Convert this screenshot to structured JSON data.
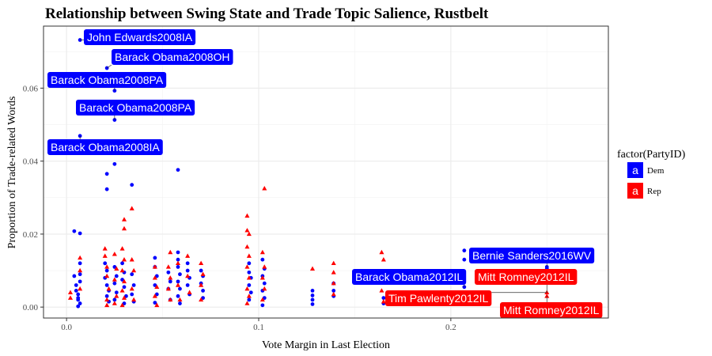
{
  "chart_data": {
    "type": "scatter",
    "title": "Relationship between Swing State and Trade Topic Salience, Rustbelt",
    "xlabel": "Vote Margin in Last Election",
    "ylabel": "Proportion of Trade-related Words",
    "xlim": [
      -0.012,
      0.282
    ],
    "ylim": [
      -0.003,
      0.077
    ],
    "xticks": [
      0.0,
      0.1,
      0.2
    ],
    "xtick_labels": [
      "0.0",
      "0.1",
      "0.2"
    ],
    "yticks": [
      0.0,
      0.02,
      0.04,
      0.06
    ],
    "ytick_labels": [
      "0.00",
      "0.02",
      "0.04",
      "0.06"
    ],
    "grid": true,
    "legend": {
      "title": "factor(PartyID)",
      "position": "right",
      "key_letter": "a",
      "entries": [
        {
          "label": "Dem",
          "color": "#0000ff",
          "shape": "circle"
        },
        {
          "label": "Rep",
          "color": "#ff0000",
          "shape": "triangle"
        }
      ]
    },
    "series": [
      {
        "name": "Dem",
        "color": "#0000ff",
        "shape": "circle",
        "points": [
          [
            0.007,
            0.0732
          ],
          [
            0.021,
            0.0655
          ],
          [
            0.025,
            0.0593
          ],
          [
            0.025,
            0.0513
          ],
          [
            0.007,
            0.0469
          ],
          [
            0.025,
            0.0392
          ],
          [
            0.058,
            0.0376
          ],
          [
            0.021,
            0.0365
          ],
          [
            0.034,
            0.0335
          ],
          [
            0.021,
            0.0323
          ],
          [
            0.004,
            0.0208
          ],
          [
            0.007,
            0.0202
          ],
          [
            0.004,
            0.0085
          ],
          [
            0.005,
            0.006
          ],
          [
            0.005,
            0.0045
          ],
          [
            0.006,
            0.0035
          ],
          [
            0.006,
            0.002
          ],
          [
            0.007,
            0.001
          ],
          [
            0.006,
            0.0002
          ],
          [
            0.007,
            0.012
          ],
          [
            0.007,
            0.009
          ],
          [
            0.007,
            0.007
          ],
          [
            0.006,
            0.0025
          ],
          [
            0.02,
            0.012
          ],
          [
            0.021,
            0.01
          ],
          [
            0.02,
            0.008
          ],
          [
            0.021,
            0.006
          ],
          [
            0.022,
            0.0045
          ],
          [
            0.021,
            0.003
          ],
          [
            0.022,
            0.0015
          ],
          [
            0.025,
            0.011
          ],
          [
            0.026,
            0.0085
          ],
          [
            0.025,
            0.0065
          ],
          [
            0.026,
            0.004
          ],
          [
            0.025,
            0.002
          ],
          [
            0.029,
            0.012
          ],
          [
            0.03,
            0.0095
          ],
          [
            0.029,
            0.0075
          ],
          [
            0.03,
            0.0055
          ],
          [
            0.031,
            0.003
          ],
          [
            0.03,
            0.001
          ],
          [
            0.034,
            0.009
          ],
          [
            0.035,
            0.006
          ],
          [
            0.034,
            0.0035
          ],
          [
            0.035,
            0.0015
          ],
          [
            0.046,
            0.0135
          ],
          [
            0.046,
            0.011
          ],
          [
            0.047,
            0.0085
          ],
          [
            0.046,
            0.006
          ],
          [
            0.047,
            0.0035
          ],
          [
            0.046,
            0.0012
          ],
          [
            0.053,
            0.0095
          ],
          [
            0.054,
            0.007
          ],
          [
            0.053,
            0.005
          ],
          [
            0.054,
            0.002
          ],
          [
            0.058,
            0.015
          ],
          [
            0.058,
            0.013
          ],
          [
            0.058,
            0.011
          ],
          [
            0.059,
            0.009
          ],
          [
            0.058,
            0.007
          ],
          [
            0.059,
            0.005
          ],
          [
            0.058,
            0.003
          ],
          [
            0.059,
            0.001
          ],
          [
            0.063,
            0.012
          ],
          [
            0.063,
            0.01
          ],
          [
            0.064,
            0.008
          ],
          [
            0.063,
            0.006
          ],
          [
            0.064,
            0.0035
          ],
          [
            0.07,
            0.01
          ],
          [
            0.071,
            0.0085
          ],
          [
            0.07,
            0.0065
          ],
          [
            0.071,
            0.0045
          ],
          [
            0.071,
            0.0025
          ],
          [
            0.095,
            0.012
          ],
          [
            0.095,
            0.0095
          ],
          [
            0.096,
            0.008
          ],
          [
            0.095,
            0.006
          ],
          [
            0.096,
            0.004
          ],
          [
            0.095,
            0.002
          ],
          [
            0.102,
            0.013
          ],
          [
            0.103,
            0.0105
          ],
          [
            0.102,
            0.0085
          ],
          [
            0.103,
            0.0065
          ],
          [
            0.102,
            0.0045
          ],
          [
            0.103,
            0.0025
          ],
          [
            0.102,
            0.0005
          ],
          [
            0.128,
            0.0045
          ],
          [
            0.128,
            0.0032
          ],
          [
            0.128,
            0.002
          ],
          [
            0.128,
            0.0008
          ],
          [
            0.139,
            0.0065
          ],
          [
            0.139,
            0.0045
          ],
          [
            0.139,
            0.003
          ],
          [
            0.165,
            0.0025
          ],
          [
            0.165,
            0.001
          ],
          [
            0.207,
            0.0155
          ],
          [
            0.207,
            0.013
          ],
          [
            0.207,
            0.0055
          ],
          [
            0.207,
            0.004
          ],
          [
            0.25,
            0.011
          ],
          [
            0.25,
            0.0105
          ],
          [
            0.25,
            0.009
          ]
        ]
      },
      {
        "name": "Rep",
        "color": "#ff0000",
        "shape": "triangle",
        "points": [
          [
            0.002,
            0.004
          ],
          [
            0.002,
            0.0025
          ],
          [
            0.007,
            0.0135
          ],
          [
            0.007,
            0.01
          ],
          [
            0.007,
            0.005
          ],
          [
            0.02,
            0.016
          ],
          [
            0.02,
            0.014
          ],
          [
            0.021,
            0.011
          ],
          [
            0.021,
            0.0085
          ],
          [
            0.022,
            0.005
          ],
          [
            0.021,
            0.002
          ],
          [
            0.021,
            0.0005
          ],
          [
            0.025,
            0.0145
          ],
          [
            0.026,
            0.0105
          ],
          [
            0.025,
            0.0075
          ],
          [
            0.026,
            0.003
          ],
          [
            0.025,
            0.001
          ],
          [
            0.029,
            0.016
          ],
          [
            0.03,
            0.013
          ],
          [
            0.029,
            0.01
          ],
          [
            0.03,
            0.007
          ],
          [
            0.029,
            0.0045
          ],
          [
            0.03,
            0.0025
          ],
          [
            0.029,
            0.0005
          ],
          [
            0.03,
            0.024
          ],
          [
            0.03,
            0.0215
          ],
          [
            0.034,
            0.027
          ],
          [
            0.034,
            0.013
          ],
          [
            0.035,
            0.01
          ],
          [
            0.034,
            0.005
          ],
          [
            0.035,
            0.002
          ],
          [
            0.046,
            0.011
          ],
          [
            0.046,
            0.008
          ],
          [
            0.047,
            0.0055
          ],
          [
            0.046,
            0.003
          ],
          [
            0.047,
            0.0005
          ],
          [
            0.054,
            0.015
          ],
          [
            0.053,
            0.011
          ],
          [
            0.054,
            0.008
          ],
          [
            0.053,
            0.005
          ],
          [
            0.054,
            0.002
          ],
          [
            0.058,
            0.012
          ],
          [
            0.058,
            0.006
          ],
          [
            0.059,
            0.002
          ],
          [
            0.063,
            0.014
          ],
          [
            0.063,
            0.0085
          ],
          [
            0.064,
            0.004
          ],
          [
            0.07,
            0.012
          ],
          [
            0.071,
            0.009
          ],
          [
            0.07,
            0.006
          ],
          [
            0.07,
            0.002
          ],
          [
            0.094,
            0.025
          ],
          [
            0.094,
            0.021
          ],
          [
            0.095,
            0.02
          ],
          [
            0.094,
            0.0165
          ],
          [
            0.095,
            0.014
          ],
          [
            0.094,
            0.011
          ],
          [
            0.095,
            0.008
          ],
          [
            0.094,
            0.005
          ],
          [
            0.095,
            0.003
          ],
          [
            0.094,
            0.001
          ],
          [
            0.103,
            0.0325
          ],
          [
            0.102,
            0.015
          ],
          [
            0.103,
            0.011
          ],
          [
            0.102,
            0.008
          ],
          [
            0.103,
            0.005
          ],
          [
            0.102,
            0.002
          ],
          [
            0.128,
            0.0105
          ],
          [
            0.139,
            0.012
          ],
          [
            0.139,
            0.0095
          ],
          [
            0.139,
            0.0065
          ],
          [
            0.139,
            0.0035
          ],
          [
            0.164,
            0.015
          ],
          [
            0.165,
            0.013
          ],
          [
            0.164,
            0.0045
          ],
          [
            0.165,
            0.0015
          ],
          [
            0.25,
            0.004
          ],
          [
            0.25,
            0.003
          ]
        ]
      }
    ],
    "annotations": [
      {
        "text": "John Edwards2008IA",
        "party": "Dem",
        "x": 0.007,
        "y": 0.0732
      },
      {
        "text": "Barack Obama2008OH",
        "party": "Dem",
        "x": 0.021,
        "y": 0.0655
      },
      {
        "text": "Barack Obama2008PA",
        "party": "Dem",
        "x": 0.025,
        "y": 0.0593
      },
      {
        "text": "Barack Obama2008PA",
        "party": "Dem",
        "x": 0.025,
        "y": 0.0513
      },
      {
        "text": "Barack Obama2008IA",
        "party": "Dem",
        "x": 0.007,
        "y": 0.0469
      },
      {
        "text": "Bernie Sanders2016WV",
        "party": "Dem",
        "x": 0.25,
        "y": 0.011
      },
      {
        "text": "Barack Obama2012IL",
        "party": "Dem",
        "x": 0.207,
        "y": 0.0055
      },
      {
        "text": "Mitt Romney2012IL",
        "party": "Rep",
        "x": 0.25,
        "y": 0.004
      },
      {
        "text": "Tim Pawlenty2012IL",
        "party": "Rep",
        "x": 0.25,
        "y": 0.004
      },
      {
        "text": "Mitt Romney2012IL",
        "party": "Rep",
        "x": 0.25,
        "y": 0.003
      }
    ]
  }
}
